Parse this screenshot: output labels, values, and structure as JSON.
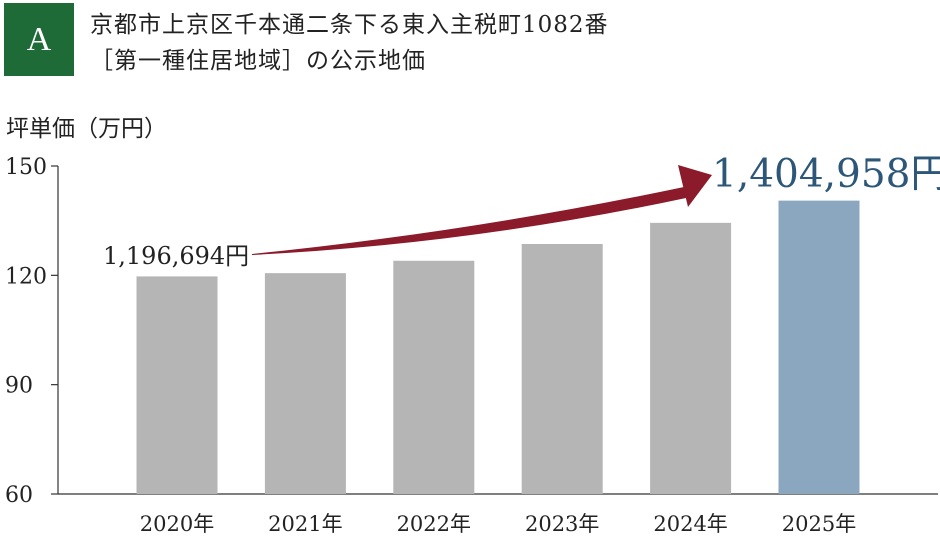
{
  "badge": "A",
  "title_line1": "京都市上京区千本通二条下る東入主税町1082番",
  "title_line2": "［第一種住居地域］の公示地価",
  "chart_data": {
    "type": "bar",
    "ylabel": "坪単価（万円）",
    "categories": [
      "2020年",
      "2021年",
      "2022年",
      "2023年",
      "2024年",
      "2025年"
    ],
    "values": [
      119.7,
      120.6,
      124.0,
      128.6,
      134.4,
      140.5
    ],
    "ylim": [
      60,
      150
    ],
    "yticks": [
      60,
      90,
      120,
      150
    ],
    "grid": false,
    "highlight_index": 5,
    "colors": {
      "bar": "#b5b5b5",
      "highlight": "#8ba7bf",
      "arrow": "#8b1a2b",
      "end_label": "#2c5778"
    },
    "annotations": {
      "start": "1,196,694円",
      "end": "1,404,958円"
    }
  }
}
